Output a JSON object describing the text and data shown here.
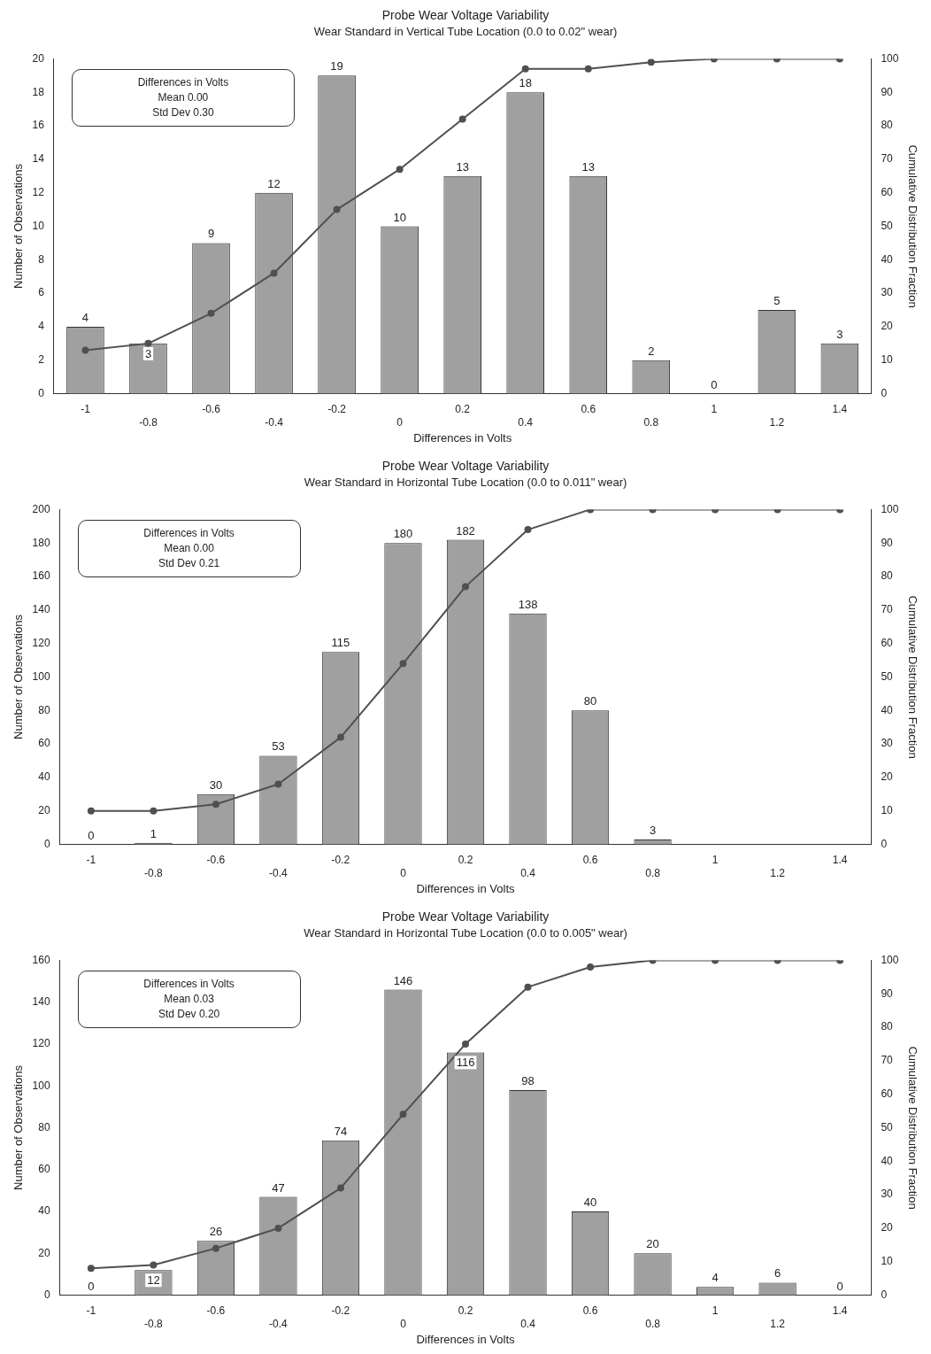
{
  "chart_data": [
    {
      "type": "bar",
      "title": "Probe Wear Voltage Variability",
      "subtitle": "Wear Standard in Vertical Tube Location (0.0 to 0.02\" wear)",
      "xlabel": "Differences in Volts",
      "ylabel": "Number of Observations",
      "y2label": "Cumulative Distribution Fraction",
      "categories": [
        "-1",
        "-0.8",
        "-0.6",
        "-0.4",
        "-0.2",
        "0",
        "0.2",
        "0.4",
        "0.6",
        "0.8",
        "1",
        "1.2",
        "1.4"
      ],
      "series": [
        {
          "type": "bar",
          "color": "#a0a0a0",
          "values": [
            4,
            3,
            9,
            12,
            19,
            10,
            13,
            18,
            13,
            2,
            0,
            5,
            3
          ],
          "value_labels": [
            "4",
            "3",
            "9",
            "12",
            "19",
            "10",
            "13",
            "18",
            "13",
            "2",
            "0",
            "5",
            "3"
          ]
        },
        {
          "type": "line",
          "axis": "y2",
          "color": "#505050",
          "marker": "circle",
          "values": [
            13,
            15,
            24,
            36,
            55,
            67,
            82,
            97,
            97,
            99,
            100,
            100,
            100
          ]
        }
      ],
      "ylim": [
        0,
        20
      ],
      "yticks": [
        0,
        2,
        4,
        6,
        8,
        10,
        12,
        14,
        16,
        18,
        20
      ],
      "y2lim": [
        0,
        100
      ],
      "y2ticks": [
        0,
        10,
        20,
        30,
        40,
        50,
        60,
        70,
        80,
        90,
        100
      ],
      "grid": false,
      "legend": false,
      "annotations": [
        "Differences in Volts",
        "Mean 0.00",
        "Std Dev 0.30"
      ]
    },
    {
      "type": "bar",
      "title": "Probe Wear Voltage Variability",
      "subtitle": "Wear Standard in Horizontal Tube Location (0.0 to 0.011\" wear)",
      "xlabel": "Differences in Volts",
      "ylabel": "Number of Observations",
      "y2label": "Cumulative Distribution Fraction",
      "categories": [
        "-1",
        "-0.8",
        "-0.6",
        "-0.4",
        "-0.2",
        "0",
        "0.2",
        "0.4",
        "0.6",
        "0.8",
        "1",
        "1.2",
        "1.4"
      ],
      "series": [
        {
          "type": "bar",
          "color": "#a0a0a0",
          "values": [
            0,
            1,
            30,
            53,
            115,
            180,
            182,
            138,
            80,
            3,
            null,
            null,
            null
          ],
          "value_labels": [
            "0",
            "1",
            "30",
            "53",
            "115",
            "180",
            "182",
            "138",
            "80",
            "3",
            null,
            null,
            null
          ]
        },
        {
          "type": "line",
          "axis": "y2",
          "color": "#505050",
          "marker": "circle",
          "values": [
            10,
            10,
            12,
            18,
            32,
            54,
            77,
            94,
            100,
            100,
            100,
            100,
            100
          ]
        }
      ],
      "ylim": [
        0,
        200
      ],
      "yticks": [
        0,
        20,
        40,
        60,
        80,
        100,
        120,
        140,
        160,
        180,
        200
      ],
      "y2lim": [
        0,
        100
      ],
      "y2ticks": [
        0,
        10,
        20,
        30,
        40,
        50,
        60,
        70,
        80,
        90,
        100
      ],
      "grid": false,
      "legend": false,
      "annotations": [
        "Differences in Volts",
        "Mean 0.00",
        "Std Dev 0.21"
      ]
    },
    {
      "type": "bar",
      "title": "Probe Wear Voltage Variability",
      "subtitle": "Wear Standard in Horizontal Tube Location (0.0 to 0.005\" wear)",
      "xlabel": "Differences in Volts",
      "ylabel": "Number of Observations",
      "y2label": "Cumulative Distribution Fraction",
      "categories": [
        "-1",
        "-0.8",
        "-0.6",
        "-0.4",
        "-0.2",
        "0",
        "0.2",
        "0.4",
        "0.6",
        "0.8",
        "1",
        "1.2",
        "1.4"
      ],
      "series": [
        {
          "type": "bar",
          "color": "#a0a0a0",
          "values": [
            0,
            12,
            26,
            47,
            74,
            146,
            116,
            98,
            40,
            20,
            4,
            6,
            0
          ],
          "value_labels": [
            "0",
            "12",
            "26",
            "47",
            "74",
            "146",
            "116",
            "98",
            "40",
            "20",
            "4",
            "6",
            "0"
          ]
        },
        {
          "type": "line",
          "axis": "y2",
          "color": "#505050",
          "marker": "circle",
          "values": [
            8,
            9,
            14,
            20,
            32,
            54,
            75,
            92,
            98,
            100,
            100,
            100,
            100
          ]
        }
      ],
      "ylim": [
        0,
        160
      ],
      "yticks": [
        0,
        20,
        40,
        60,
        80,
        100,
        120,
        140,
        160
      ],
      "y2lim": [
        0,
        100
      ],
      "y2ticks": [
        0,
        10,
        20,
        30,
        40,
        50,
        60,
        70,
        80,
        90,
        100
      ],
      "grid": false,
      "legend": false,
      "annotations": [
        "Differences in Volts",
        "Mean 0.03",
        "Std Dev 0.20"
      ]
    }
  ]
}
